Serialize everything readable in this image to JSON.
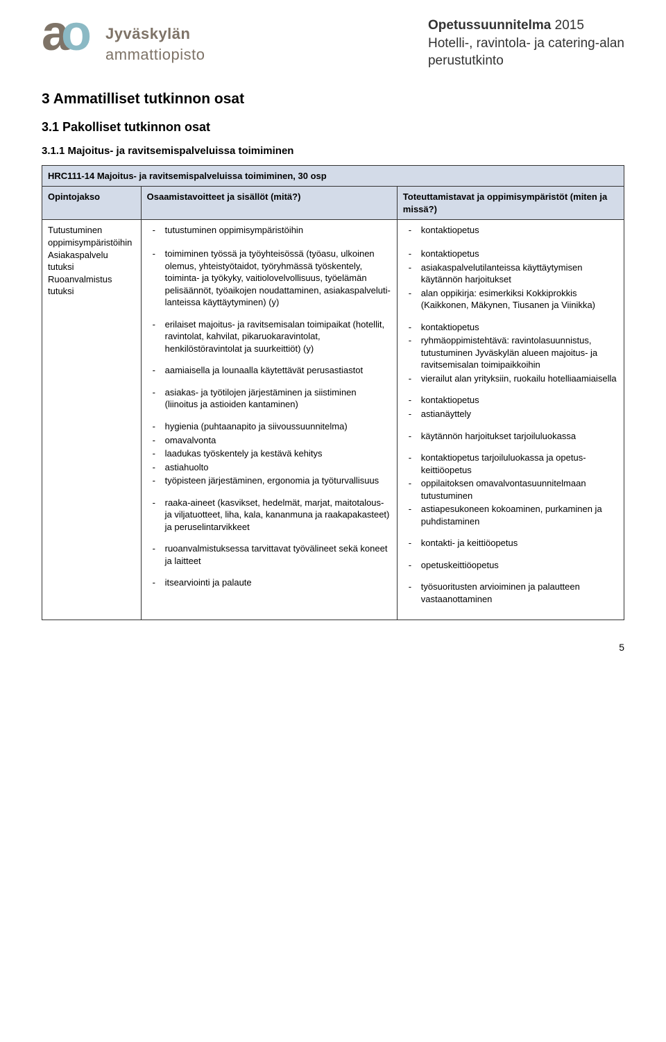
{
  "logo": {
    "a": "a",
    "o": "o",
    "line1": "Jyväskylän",
    "line2": "ammattiopisto"
  },
  "docTitle": {
    "pre": "Opetussuunnitelma ",
    "year": "2015",
    "line2": "Hotelli-, ravintola- ja catering-alan",
    "line3": "perustutkinto"
  },
  "h2": "3  Ammatilliset tutkinnon osat",
  "h3": "3.1  Pakolliset tutkinnon osat",
  "h4": "3.1.1  Majoitus- ja ravitsemispalveluissa toimiminen",
  "bandTitle": "HRC111-14 Majoitus- ja ravitsemispalveluissa toimiminen, 30 osp",
  "headers": {
    "c1": "Opintojakso",
    "c2": "Osaamistavoitteet ja sisällöt (mitä?)",
    "c3": "Toteuttamistavat ja oppimisympäristöt (miten ja missä?)"
  },
  "leftCell": "Tutustuminen oppimisympäris­töihin\nAsiakaspalvelu tutuksi\nRuoanvalmistus tutuksi",
  "rows": [
    {
      "mid": [
        "tutustuminen oppimisympäristöihin",
        "",
        "toimiminen työssä ja työyhteisössä (työasu, ulkoinen olemus, yhteistyötaidot, työryh­mässä työskentely, toiminta- ja työkyky, vai­tiolovelvollisuus, työelämän pelisäännöt, työaikojen noudattaminen, asiakaspalveluti­lanteissa käyttäytyminen) (y)"
      ],
      "right": [
        "kontaktiopetus",
        "",
        "kontaktiopetus",
        "asiakaspalvelutilanteissa käyttäytymisen käytännön harjoitukset",
        "alan oppikirja: esimerkiksi Kokkiprokkis (Kaikkonen, Mäkynen, Tiusanen ja Viinikka)"
      ]
    },
    {
      "mid": [
        "erilaiset majoitus- ja ravitsemisalan toimi­paikat (hotellit, ravintolat, kahvilat, pikaruo­karavintolat, henkilöstöravintolat ja suurkeit­tiöt) (y)"
      ],
      "right": [
        "kontaktiopetus",
        "ryhmäoppimistehtävä: ravintolasuunnistus, tutustuminen Jyväskylän alueen majoitus- ja ravitsemisalan toimipaikkoihin",
        "vierailut alan yrityksiin, ruokailu hotelliaa­miaisella"
      ]
    },
    {
      "mid": [
        "aamiaisella ja lounaalla käytettävät perusas­tiastot"
      ],
      "right": [
        "kontaktiopetus",
        "astianäyttely"
      ]
    },
    {
      "mid": [
        "asiakas- ja työtilojen järjestäminen ja siisti­minen (liinoitus ja astioiden kantaminen)"
      ],
      "right": [
        "käytännön harjoitukset tarjoiluluokassa"
      ]
    },
    {
      "mid": [
        "hygienia (puhtaanapito ja siivoussuunnitel­ma)",
        "omavalvonta",
        "laadukas työskentely ja kestävä kehitys",
        "astiahuolto",
        "työpisteen järjestäminen, ergonomia ja työturvallisuus"
      ],
      "right": [
        "kontaktiopetus tarjoiluluokassa ja opetus­keittiöopetus",
        "oppilaitoksen omavalvontasuunnitelmaan tutustuminen",
        "astiapesukoneen kokoaminen, purkaminen ja puhdistaminen"
      ]
    },
    {
      "mid": [
        "raaka-aineet (kasvikset, hedelmät, marjat, maitotalous- ja viljatuotteet, liha, kala, ka­nanmuna ja raakapakasteet) ja peruselin­tarvikkeet"
      ],
      "right": [
        "kontakti- ja keittiöopetus"
      ]
    },
    {
      "mid": [
        "ruoanvalmistuksessa tarvittavat työvälineet sekä koneet ja laitteet"
      ],
      "right": [
        "opetuskeittiöopetus"
      ]
    },
    {
      "mid": [
        "itsearviointi ja palaute"
      ],
      "right": [
        "työsuoritusten arvioiminen ja palautteen vastaanottaminen"
      ]
    }
  ],
  "pageNum": "5",
  "colors": {
    "band": "#d3dbe8",
    "logoBrown": "#7e7367",
    "logoBlue": "#8bb9c4"
  }
}
